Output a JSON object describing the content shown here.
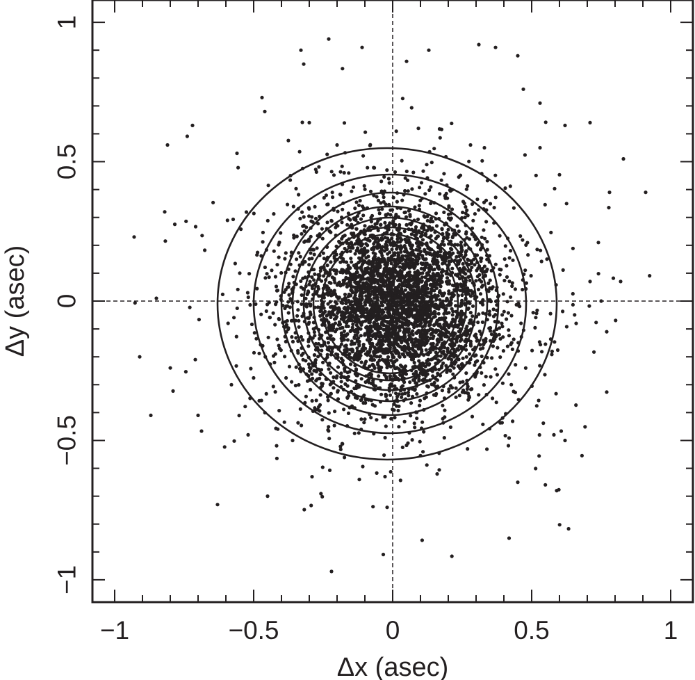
{
  "chart_data": {
    "type": "scatter",
    "xlabel": "Δx (asec)",
    "ylabel": "Δy (asec)",
    "xlim": [
      -1.08,
      1.08
    ],
    "ylim": [
      -1.08,
      1.08
    ],
    "xticks": [
      {
        "value": -1,
        "label": "−1"
      },
      {
        "value": -0.5,
        "label": "−0.5"
      },
      {
        "value": 0,
        "label": "0"
      },
      {
        "value": 0.5,
        "label": "0.5"
      },
      {
        "value": 1,
        "label": "1"
      }
    ],
    "yticks": [
      {
        "value": -1,
        "label": "−1"
      },
      {
        "value": -0.5,
        "label": "−0.5"
      },
      {
        "value": 0,
        "label": "0"
      },
      {
        "value": 0.5,
        "label": "0.5"
      },
      {
        "value": 1,
        "label": "1"
      }
    ],
    "minor_tick_step": 0.1,
    "reference_lines": {
      "x": 0,
      "y": 0,
      "style": "dashed"
    },
    "grid": false,
    "colors": {
      "points": "#231f20",
      "contours": "#231f20",
      "axes": "#231f20"
    },
    "contours": [
      {
        "cx": -0.02,
        "cy": -0.01,
        "rx": 0.61,
        "ry": 0.56
      },
      {
        "cx": -0.01,
        "cy": -0.01,
        "rx": 0.49,
        "ry": 0.465
      },
      {
        "cx": -0.01,
        "cy": -0.01,
        "rx": 0.39,
        "ry": 0.4
      },
      {
        "cx": -0.01,
        "cy": -0.01,
        "rx": 0.35,
        "ry": 0.35
      },
      {
        "cx": -0.01,
        "cy": -0.01,
        "rx": 0.31,
        "ry": 0.31
      },
      {
        "cx": -0.01,
        "cy": -0.01,
        "rx": 0.275,
        "ry": 0.275
      },
      {
        "cx": -0.01,
        "cy": -0.01,
        "rx": 0.245,
        "ry": 0.25
      }
    ],
    "outlier_points": [
      [
        -0.93,
        0.23
      ],
      [
        -0.91,
        -0.2
      ],
      [
        -0.87,
        -0.41
      ],
      [
        -0.82,
        0.32
      ],
      [
        -0.81,
        0.56
      ],
      [
        -0.8,
        -0.24
      ],
      [
        -0.72,
        0.63
      ],
      [
        -0.71,
        -0.21
      ],
      [
        -0.7,
        -0.41
      ],
      [
        -0.63,
        -0.73
      ],
      [
        -0.58,
        -0.3
      ],
      [
        -0.56,
        0.53
      ],
      [
        -0.55,
        0.1
      ],
      [
        -0.52,
        -0.48
      ],
      [
        -0.45,
        -0.7
      ],
      [
        -0.33,
        0.9
      ],
      [
        -0.32,
        0.85
      ],
      [
        -0.23,
        0.94
      ],
      [
        -0.22,
        -0.97
      ],
      [
        -0.11,
        0.91
      ],
      [
        0.13,
        0.9
      ],
      [
        0.31,
        0.92
      ],
      [
        0.37,
        0.91
      ],
      [
        0.45,
        0.88
      ],
      [
        0.47,
        0.76
      ],
      [
        0.53,
        0.71
      ],
      [
        0.62,
        0.63
      ],
      [
        0.71,
        0.64
      ],
      [
        0.83,
        0.51
      ],
      [
        0.91,
        0.39
      ],
      [
        0.78,
        0.39
      ],
      [
        0.74,
        0.21
      ],
      [
        0.71,
        0.07
      ],
      [
        0.75,
        0.0
      ],
      [
        0.77,
        -0.11
      ],
      [
        0.66,
        -0.08
      ],
      [
        0.58,
        -0.48
      ],
      [
        0.62,
        -0.5
      ],
      [
        0.59,
        -0.68
      ],
      [
        0.45,
        -0.65
      ],
      [
        0.16,
        -0.62
      ],
      [
        -0.02,
        -0.74
      ],
      [
        -0.12,
        -0.64
      ],
      [
        -0.29,
        -0.63
      ],
      [
        -0.36,
        -0.5
      ],
      [
        -0.3,
        0.64
      ],
      [
        -0.2,
        0.56
      ],
      [
        0.33,
        0.55
      ],
      [
        0.82,
        0.07
      ],
      [
        -0.85,
        0.01
      ],
      [
        0.05,
        0.86
      ],
      [
        0.28,
        0.56
      ],
      [
        -0.46,
        0.68
      ],
      [
        0.53,
        0.55
      ],
      [
        -0.47,
        0.73
      ]
    ],
    "cloud": {
      "n_points": 4200,
      "center": [
        0.01,
        -0.01
      ],
      "sigma": [
        0.17,
        0.165
      ],
      "wide_fraction": 0.22,
      "wide_sigma": [
        0.3,
        0.28
      ],
      "seed": 12345
    }
  }
}
